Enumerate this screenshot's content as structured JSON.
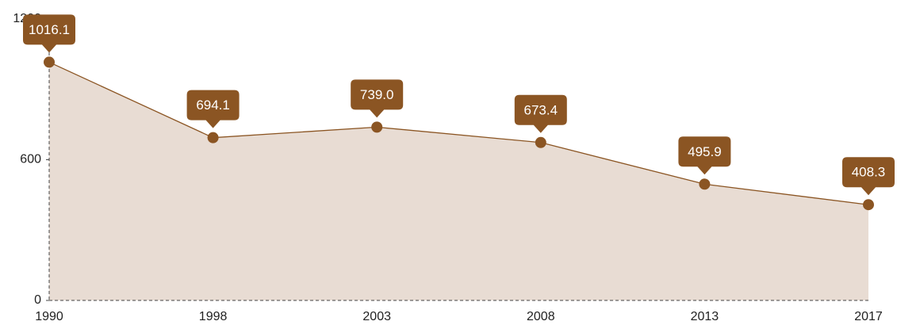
{
  "chart_data": {
    "type": "area",
    "categories": [
      "1990",
      "1998",
      "2003",
      "2008",
      "2013",
      "2017"
    ],
    "values": [
      1016.1,
      694.1,
      739.0,
      673.4,
      495.9,
      408.3
    ],
    "value_labels": [
      "1016.1",
      "694.1",
      "739.0",
      "673.4",
      "495.9",
      "408.3"
    ],
    "color": "#8b5523",
    "fill": "#e8dcd3",
    "ylim": [
      0,
      1200
    ],
    "yticks": [
      0,
      600,
      1200
    ]
  }
}
